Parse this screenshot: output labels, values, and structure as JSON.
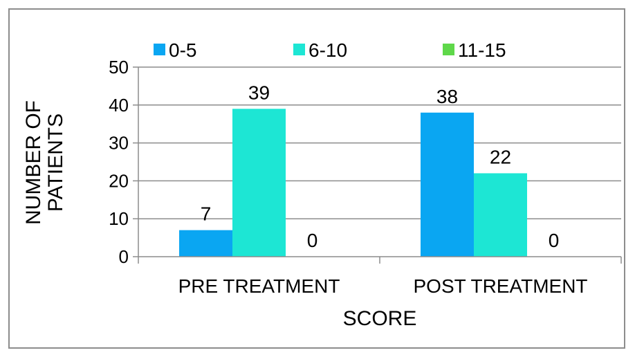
{
  "chart_data": {
    "type": "bar",
    "categories": [
      "PRE TREATMENT",
      "POST TREATMENT"
    ],
    "series": [
      {
        "name": "0-5",
        "color": "#0aa6f2",
        "values": [
          7,
          38
        ]
      },
      {
        "name": "6-10",
        "color": "#1de6d4",
        "values": [
          39,
          22
        ]
      },
      {
        "name": "11-15",
        "color": "#5fd84a",
        "values": [
          0,
          0
        ]
      }
    ],
    "xlabel": "SCORE",
    "ylabel": [
      "NUMBER OF",
      "PATIENTS"
    ],
    "ylim": [
      0,
      50
    ],
    "yticks": [
      0,
      10,
      20,
      30,
      40,
      50
    ],
    "grid": true,
    "legend": "top"
  }
}
